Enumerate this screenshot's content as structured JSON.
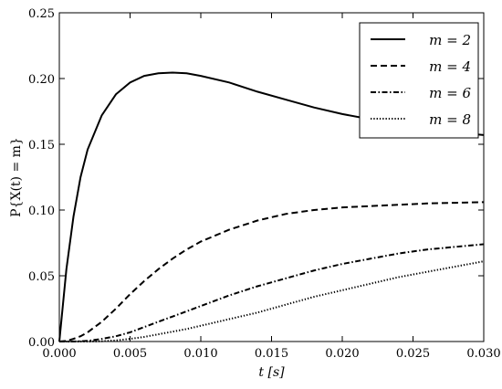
{
  "chart_data": {
    "type": "line",
    "title": "",
    "xlabel": "t [s]",
    "ylabel": "P{X(t) = m}",
    "xlim": [
      0,
      0.03
    ],
    "ylim": [
      0,
      0.25
    ],
    "xticks": [
      "0.000",
      "0.005",
      "0.010",
      "0.015",
      "0.020",
      "0.025",
      "0.030"
    ],
    "yticks": [
      "0.00",
      "0.05",
      "0.10",
      "0.15",
      "0.20",
      "0.25"
    ],
    "grid": false,
    "legend": "top-right",
    "x": [
      0,
      0.0005,
      0.001,
      0.0015,
      0.002,
      0.003,
      0.004,
      0.005,
      0.006,
      0.007,
      0.008,
      0.009,
      0.01,
      0.012,
      0.014,
      0.016,
      0.018,
      0.02,
      0.022,
      0.024,
      0.026,
      0.028,
      0.03
    ],
    "series": [
      {
        "name": "m = 2",
        "style": "solid",
        "values": [
          0,
          0.055,
          0.095,
          0.125,
          0.146,
          0.172,
          0.188,
          0.197,
          0.202,
          0.204,
          0.2045,
          0.204,
          0.202,
          0.197,
          0.19,
          0.184,
          0.178,
          0.173,
          0.169,
          0.165,
          0.162,
          0.159,
          0.157
        ]
      },
      {
        "name": "m = 4",
        "style": "dashed",
        "values": [
          0,
          0.0005,
          0.002,
          0.004,
          0.007,
          0.015,
          0.025,
          0.036,
          0.046,
          0.055,
          0.063,
          0.07,
          0.076,
          0.085,
          0.092,
          0.097,
          0.1,
          0.102,
          0.103,
          0.104,
          0.105,
          0.1055,
          0.106
        ]
      },
      {
        "name": "m = 6",
        "style": "dashdot",
        "values": [
          0,
          0,
          0,
          0.0002,
          0.0005,
          0.002,
          0.004,
          0.007,
          0.011,
          0.015,
          0.019,
          0.023,
          0.027,
          0.035,
          0.042,
          0.048,
          0.054,
          0.059,
          0.063,
          0.067,
          0.07,
          0.072,
          0.074
        ]
      },
      {
        "name": "m = 8",
        "style": "dotted",
        "values": [
          0,
          0,
          0,
          0,
          0,
          0.0002,
          0.0008,
          0.002,
          0.0035,
          0.0055,
          0.0075,
          0.0095,
          0.012,
          0.017,
          0.022,
          0.028,
          0.034,
          0.039,
          0.044,
          0.049,
          0.053,
          0.057,
          0.061
        ]
      }
    ]
  }
}
